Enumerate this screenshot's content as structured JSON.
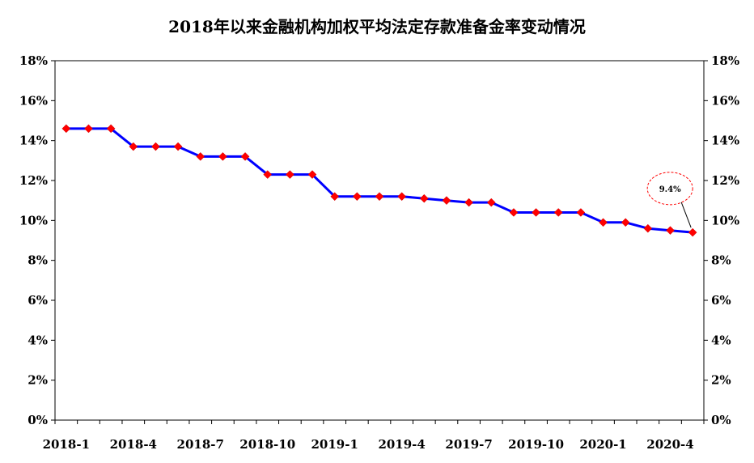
{
  "chart_data": {
    "type": "line",
    "title": "2018年以来金融机构加权平均法定存款准备金率变动情况",
    "xlabel": "",
    "ylabel": "",
    "ylim": [
      0,
      18
    ],
    "y_ticks": [
      0,
      2,
      4,
      6,
      8,
      10,
      12,
      14,
      16,
      18
    ],
    "y_tick_labels": [
      "0%",
      "2%",
      "4%",
      "6%",
      "8%",
      "10%",
      "12%",
      "14%",
      "16%",
      "18%"
    ],
    "x_tick_labels": [
      "2018-1",
      "2018-4",
      "2018-7",
      "2018-10",
      "2019-1",
      "2019-4",
      "2019-7",
      "2019-10",
      "2020-1",
      "2020-4"
    ],
    "grid": false,
    "legend": "none",
    "line_color": "#0000ff",
    "marker_color": "#ff0000",
    "annotation": {
      "text": "9.4%",
      "color": "#ff0000"
    },
    "series": [
      {
        "values": [
          14.6,
          14.6,
          14.6,
          13.7,
          13.7,
          13.7,
          13.2,
          13.2,
          13.2,
          12.3,
          12.3,
          12.3,
          11.2,
          11.2,
          11.2,
          11.2,
          11.1,
          11.0,
          10.9,
          10.9,
          10.4,
          10.4,
          10.4,
          10.4,
          9.9,
          9.9,
          9.6,
          9.5,
          9.4
        ]
      }
    ]
  }
}
